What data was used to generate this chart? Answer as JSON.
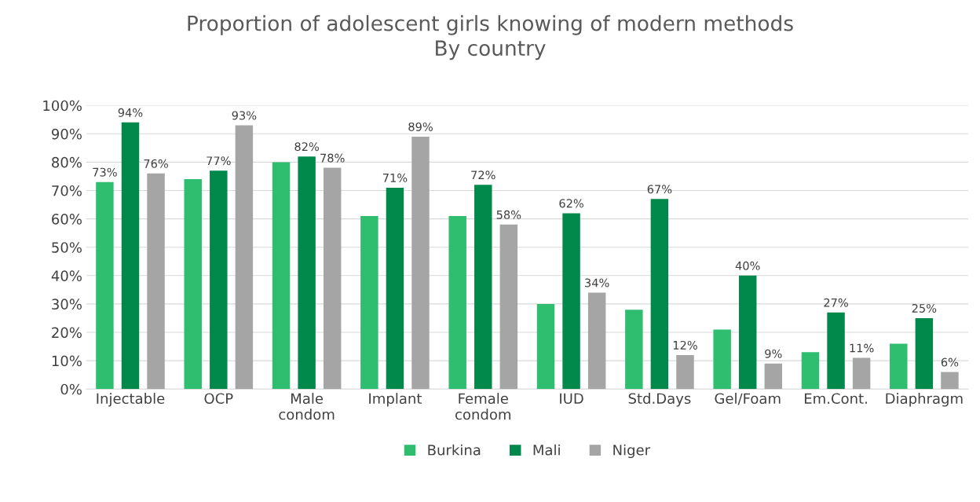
{
  "chart_data": {
    "type": "bar",
    "title": "Proportion of adolescent girls knowing of modern methods\nBy country",
    "categories": [
      "Injectable",
      "OCP",
      "Male\ncondom",
      "Implant",
      "Female\ncondom",
      "IUD",
      "Std.Days",
      "Gel/Foam",
      "Em.Cont.",
      "Diaphragm"
    ],
    "series": [
      {
        "name": "Burkina",
        "color": "#2fbd6f",
        "values": [
          73,
          74,
          80,
          61,
          61,
          30,
          28,
          21,
          13,
          16
        ],
        "value_labels": [
          "73%",
          null,
          null,
          null,
          null,
          null,
          null,
          null,
          null,
          null
        ]
      },
      {
        "name": "Mali",
        "color": "#00894b",
        "values": [
          94,
          77,
          82,
          71,
          72,
          62,
          67,
          40,
          27,
          25
        ],
        "value_labels": [
          "94%",
          "77%",
          "82%",
          "71%",
          "72%",
          "62%",
          "67%",
          "40%",
          "27%",
          "25%"
        ]
      },
      {
        "name": "Niger",
        "color": "#a5a5a5",
        "values": [
          76,
          93,
          78,
          89,
          58,
          34,
          12,
          9,
          11,
          6
        ],
        "value_labels": [
          "76%",
          "93%",
          "78%",
          "89%",
          "58%",
          "34%",
          "12%",
          "9%",
          "11%",
          "6%"
        ]
      }
    ],
    "ylim": [
      0,
      100
    ],
    "yticks": [
      {
        "value": 0,
        "label": "0%"
      },
      {
        "value": 10,
        "label": "10%"
      },
      {
        "value": 20,
        "label": "20%"
      },
      {
        "value": 30,
        "label": "30%"
      },
      {
        "value": 40,
        "label": "40%"
      },
      {
        "value": 50,
        "label": "50%"
      },
      {
        "value": 60,
        "label": "60%"
      },
      {
        "value": 70,
        "label": "70%"
      },
      {
        "value": 80,
        "label": "80%"
      },
      {
        "value": 90,
        "label": "90%"
      },
      {
        "value": 100,
        "label": "100%"
      }
    ],
    "grid": "y",
    "legend": "bottom"
  }
}
